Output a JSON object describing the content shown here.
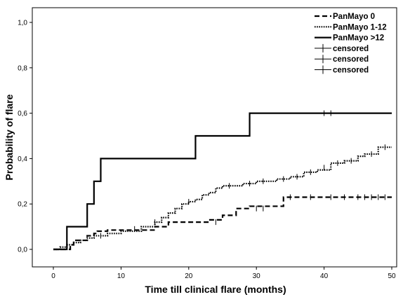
{
  "chart_data": {
    "type": "line",
    "subtype": "kaplan-meier-step",
    "xlabel": "Time till clinical flare (months)",
    "ylabel": "Probability of flare",
    "xlim": [
      -5,
      50
    ],
    "ylim": [
      -0.035,
      1.05
    ],
    "xticks": [
      0,
      10,
      20,
      30,
      40,
      50
    ],
    "yticks": [
      0.0,
      0.2,
      0.4,
      0.6,
      0.8,
      1.0
    ],
    "ytick_labels": [
      "0,0",
      "0,2",
      "0,4",
      "0,6",
      "0,8",
      "1,0"
    ],
    "grid": false,
    "legend_position": "top-right",
    "legend": [
      {
        "label": "PanMayo 0",
        "style": "dashed"
      },
      {
        "label": "PanMayo 1-12",
        "style": "dotted"
      },
      {
        "label": "PanMayo >12",
        "style": "solid"
      },
      {
        "label": "censored",
        "style": "censor-mark"
      },
      {
        "label": "censored",
        "style": "censor-mark"
      },
      {
        "label": "censored",
        "style": "censor-mark"
      }
    ],
    "series": [
      {
        "name": "PanMayo 0",
        "style": "dashed",
        "x": [
          0,
          2,
          2.5,
          3,
          5,
          6,
          6.5,
          8,
          10,
          15,
          17,
          23,
          25,
          27,
          29,
          34,
          50
        ],
        "y": [
          0.0,
          0.0,
          0.02,
          0.04,
          0.06,
          0.07,
          0.08,
          0.085,
          0.085,
          0.1,
          0.12,
          0.13,
          0.15,
          0.18,
          0.19,
          0.23,
          0.23
        ],
        "censored": [
          [
            24,
            0.12
          ],
          [
            30,
            0.18
          ],
          [
            31,
            0.18
          ],
          [
            35,
            0.23
          ],
          [
            38,
            0.23
          ],
          [
            41,
            0.23
          ],
          [
            43,
            0.23
          ],
          [
            45,
            0.23
          ],
          [
            46,
            0.23
          ],
          [
            47,
            0.23
          ],
          [
            48,
            0.23
          ],
          [
            49,
            0.23
          ]
        ]
      },
      {
        "name": "PanMayo 1-12",
        "style": "dotted",
        "x": [
          0,
          1,
          2,
          3,
          4,
          5,
          6,
          8,
          10,
          13,
          15,
          16,
          17,
          18,
          19,
          20,
          21,
          22,
          23,
          24,
          25,
          26,
          28,
          30,
          33,
          35,
          37,
          39,
          41,
          43,
          45,
          46,
          48,
          50
        ],
        "y": [
          0.0,
          0.01,
          0.02,
          0.03,
          0.04,
          0.05,
          0.06,
          0.07,
          0.08,
          0.1,
          0.12,
          0.14,
          0.16,
          0.18,
          0.2,
          0.21,
          0.22,
          0.24,
          0.25,
          0.27,
          0.28,
          0.28,
          0.29,
          0.3,
          0.31,
          0.32,
          0.34,
          0.35,
          0.38,
          0.39,
          0.41,
          0.42,
          0.45,
          0.45
        ],
        "censored": [
          [
            7,
            0.06
          ],
          [
            12,
            0.09
          ],
          [
            15,
            0.12
          ],
          [
            20,
            0.21
          ],
          [
            26,
            0.28
          ],
          [
            29,
            0.29
          ],
          [
            31,
            0.3
          ],
          [
            34,
            0.31
          ],
          [
            36,
            0.32
          ],
          [
            38,
            0.34
          ],
          [
            40,
            0.36
          ],
          [
            42,
            0.38
          ],
          [
            44,
            0.39
          ],
          [
            47,
            0.42
          ],
          [
            49,
            0.45
          ]
        ]
      },
      {
        "name": "PanMayo >12",
        "style": "solid",
        "x": [
          0,
          2,
          5,
          6,
          7,
          21,
          29,
          50
        ],
        "y": [
          0.0,
          0.1,
          0.2,
          0.3,
          0.4,
          0.5,
          0.6,
          0.6
        ],
        "censored": [
          [
            40,
            0.6
          ],
          [
            41,
            0.6
          ]
        ]
      }
    ]
  }
}
